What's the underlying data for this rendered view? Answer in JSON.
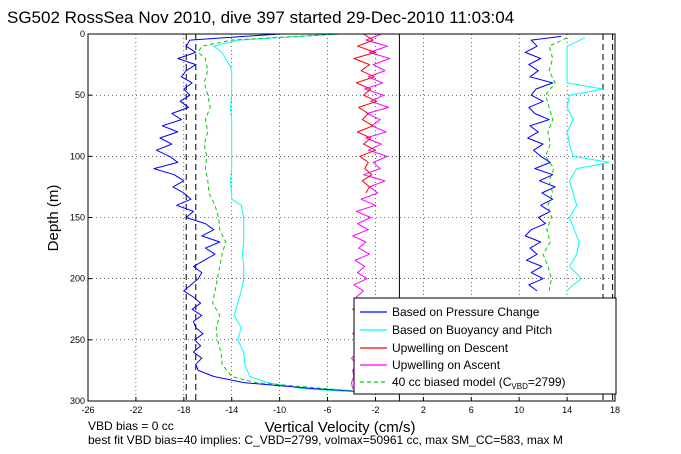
{
  "chart_data": {
    "type": "line",
    "title": "SG502 RossSea Nov 2010, dive 397 started 29-Dec-2010 11:03:04",
    "xlabel": "Vertical Velocity (cm/s)",
    "ylabel": "Depth (m)",
    "xlim": [
      -26,
      18
    ],
    "ylim": [
      0,
      300
    ],
    "y_reversed": true,
    "grid": true,
    "legend_position": "bottom-right",
    "x_ticks": [
      -26,
      -22,
      -18,
      -14,
      -10,
      -6,
      -2,
      2,
      6,
      10,
      14,
      18
    ],
    "y_ticks": [
      0,
      50,
      100,
      150,
      200,
      250,
      300
    ],
    "vertical_lines": [
      {
        "x": -17.8,
        "style": "dashed",
        "color": "#000000"
      },
      {
        "x": -17.0,
        "style": "dashed",
        "color": "#000000"
      },
      {
        "x": 0.0,
        "style": "solid",
        "color": "#000000"
      },
      {
        "x": 17.0,
        "style": "dashed",
        "color": "#000000"
      },
      {
        "x": 17.8,
        "style": "dashed",
        "color": "#000000"
      }
    ],
    "series": [
      {
        "name": "Based on Pressure Change",
        "color": "#0000ff",
        "style": "solid",
        "descent": {
          "depth": [
            0,
            5,
            10,
            15,
            20,
            25,
            30,
            35,
            40,
            45,
            50,
            55,
            60,
            65,
            70,
            75,
            80,
            85,
            90,
            95,
            100,
            105,
            110,
            115,
            120,
            125,
            130,
            135,
            140,
            145,
            150,
            155,
            160,
            165,
            170,
            175,
            180,
            185,
            190,
            195,
            200,
            205,
            210,
            215,
            220,
            225,
            230,
            235,
            240,
            245,
            250,
            255,
            260,
            265,
            270,
            275,
            280,
            285,
            290,
            293
          ],
          "velocity": [
            -10,
            -17.5,
            -17.8,
            -17.0,
            -18.5,
            -17.0,
            -17.8,
            -18.2,
            -17.3,
            -18.0,
            -17.5,
            -18.3,
            -17.6,
            -19.0,
            -18.2,
            -19.8,
            -18.5,
            -20.0,
            -19.0,
            -20.3,
            -19.2,
            -18.5,
            -20.5,
            -18.8,
            -18.0,
            -18.9,
            -18.0,
            -17.4,
            -18.6,
            -17.2,
            -17.8,
            -16.2,
            -15.5,
            -16.5,
            -15.0,
            -16.2,
            -15.4,
            -16.3,
            -17.2,
            -16.5,
            -16.8,
            -17.4,
            -18.0,
            -17.2,
            -16.6,
            -17.3,
            -16.5,
            -17.2,
            -17.0,
            -16.4,
            -17.1,
            -16.6,
            -17.2,
            -16.5,
            -17.0,
            -16.8,
            -15.5,
            -13,
            -7,
            -2
          ]
        },
        "ascent": {
          "depth": [
            2,
            5,
            10,
            15,
            20,
            25,
            30,
            35,
            40,
            45,
            50,
            55,
            60,
            65,
            70,
            75,
            80,
            85,
            90,
            95,
            100,
            105,
            110,
            115,
            120,
            125,
            130,
            135,
            140,
            145,
            150,
            155,
            160,
            165,
            170,
            175,
            180,
            185,
            190,
            195,
            200,
            205,
            210
          ],
          "velocity": [
            13.5,
            11.0,
            11.5,
            10.5,
            11.8,
            10.8,
            11.6,
            10.9,
            12.8,
            11.4,
            11.0,
            12.0,
            10.8,
            11.3,
            12.5,
            10.9,
            11.6,
            10.7,
            12.0,
            11.2,
            11.8,
            12.6,
            11.3,
            12.8,
            11.7,
            13.0,
            11.9,
            12.8,
            11.8,
            12.6,
            11.6,
            12.2,
            11.0,
            10.5,
            11.8,
            10.9,
            11.5,
            10.6,
            11.9,
            11.0,
            12.0,
            10.8,
            11.5
          ]
        }
      },
      {
        "name": "Based on Buoyancy and Pitch",
        "color": "#00ffff",
        "style": "solid",
        "descent": {
          "depth": [
            0,
            5,
            10,
            15,
            20,
            25,
            30,
            40,
            50,
            60,
            70,
            80,
            90,
            100,
            110,
            120,
            130,
            135,
            140,
            150,
            160,
            170,
            180,
            190,
            200,
            210,
            220,
            230,
            240,
            250,
            260,
            270,
            280,
            285,
            290,
            293
          ],
          "velocity": [
            -5,
            -13.5,
            -15.5,
            -14.8,
            -14.5,
            -14.2,
            -14.0,
            -14.0,
            -14.0,
            -14.1,
            -14.0,
            -14.0,
            -14.0,
            -14.0,
            -14.0,
            -14.1,
            -14.0,
            -14.0,
            -13.2,
            -13.0,
            -13.0,
            -13.0,
            -13.1,
            -13.0,
            -13.0,
            -13.2,
            -13.5,
            -13.8,
            -13.2,
            -13.5,
            -13.0,
            -12.9,
            -12.5,
            -11.0,
            -8.0,
            -3.0
          ]
        },
        "ascent": {
          "depth": [
            3,
            10,
            20,
            30,
            40,
            45,
            50,
            60,
            70,
            80,
            90,
            100,
            105,
            110,
            120,
            130,
            140,
            150,
            160,
            170,
            180,
            190,
            200,
            205,
            210
          ],
          "velocity": [
            15.5,
            14.0,
            14.0,
            14.0,
            14.0,
            17.0,
            14.2,
            14.0,
            14.5,
            14.0,
            14.2,
            14.5,
            17.5,
            14.8,
            14.2,
            14.5,
            14.8,
            14.2,
            14.6,
            15.0,
            14.8,
            14.2,
            15.2,
            14.5,
            14.0
          ]
        }
      },
      {
        "name": "Upwelling on Descent",
        "color": "#ff0000",
        "style": "solid",
        "depth": [
          0,
          5,
          10,
          15,
          20,
          25,
          30,
          35,
          40,
          45,
          50,
          55,
          60,
          65,
          70,
          75,
          80,
          85,
          90,
          95,
          100,
          105,
          110,
          115,
          120,
          125,
          130
        ],
        "velocity": [
          -3.0,
          -2.2,
          -3.5,
          -2.0,
          -3.8,
          -2.5,
          -3.2,
          -2.1,
          -3.6,
          -2.4,
          -3.0,
          -1.9,
          -3.4,
          -2.6,
          -3.1,
          -2.2,
          -3.5,
          -2.4,
          -3.0,
          -2.0,
          -3.3,
          -2.6,
          -2.9,
          -2.3,
          -3.1,
          -2.5,
          -2.8
        ]
      },
      {
        "name": "Upwelling on Ascent",
        "color": "#ff00ff",
        "style": "solid",
        "depth": [
          0,
          5,
          10,
          15,
          20,
          25,
          30,
          35,
          40,
          45,
          50,
          55,
          60,
          65,
          70,
          75,
          80,
          85,
          90,
          95,
          100,
          105,
          110,
          115,
          120,
          125,
          130,
          135,
          140,
          145,
          150,
          155,
          160,
          165,
          170,
          175,
          180,
          185,
          190,
          195,
          200,
          205,
          210,
          215,
          220,
          225,
          230,
          235,
          240,
          245,
          250,
          255,
          260,
          265,
          270,
          275,
          280,
          285,
          290
        ],
        "velocity": [
          -1.5,
          -2.8,
          -1.0,
          -2.5,
          -0.8,
          -2.2,
          -1.2,
          -2.6,
          -1.4,
          -2.9,
          -1.3,
          -2.4,
          -0.9,
          -2.7,
          -1.6,
          -2.3,
          -1.1,
          -2.8,
          -1.5,
          -2.6,
          -1.0,
          -2.2,
          -1.6,
          -3.0,
          -1.2,
          -2.5,
          -1.8,
          -3.2,
          -2.0,
          -3.6,
          -2.4,
          -3.5,
          -2.6,
          -3.9,
          -2.8,
          -3.4,
          -2.5,
          -3.7,
          -2.9,
          -3.5,
          -2.7,
          -3.8,
          -3.0,
          -3.6,
          -3.3,
          -3.9,
          -3.1,
          -3.7,
          -3.4,
          -3.9,
          -3.2,
          -3.8,
          -3.5,
          -4.0,
          -3.6,
          -3.9,
          -3.8,
          -4.0,
          -3.9
        ]
      },
      {
        "name": "40 cc biased model (C",
        "name_sub": "VBD",
        "name_suffix": "=2799)",
        "color": "#00cc00",
        "style": "dashed",
        "descent": {
          "depth": [
            0,
            5,
            10,
            15,
            20,
            30,
            40,
            50,
            60,
            70,
            80,
            90,
            100,
            110,
            120,
            130,
            140,
            150,
            160,
            170,
            180,
            190,
            200,
            210,
            220,
            230,
            240,
            250,
            260,
            270,
            280,
            285,
            290,
            293
          ],
          "velocity": [
            -5,
            -14.0,
            -16.5,
            -16.8,
            -16.2,
            -16.0,
            -16.3,
            -16.0,
            -15.8,
            -16.2,
            -16.0,
            -16.3,
            -16.1,
            -16.2,
            -16.0,
            -15.9,
            -15.4,
            -15.1,
            -15.0,
            -14.5,
            -14.8,
            -15.0,
            -15.2,
            -15.4,
            -15.6,
            -15.0,
            -15.3,
            -15.2,
            -14.9,
            -14.8,
            -14.0,
            -12.0,
            -6.0,
            -2.0
          ]
        },
        "ascent": {
          "depth": [
            3,
            10,
            20,
            30,
            40,
            50,
            60,
            70,
            80,
            90,
            100,
            110,
            120,
            130,
            140,
            150,
            160,
            170,
            180,
            190,
            200,
            210
          ],
          "velocity": [
            14.0,
            12.5,
            12.8,
            12.5,
            13.0,
            12.2,
            12.5,
            12.8,
            12.4,
            12.6,
            12.2,
            12.9,
            12.5,
            12.8,
            12.4,
            12.7,
            12.3,
            12.6,
            12.0,
            12.4,
            12.7,
            12.5
          ]
        }
      }
    ]
  },
  "notes": {
    "line1": "VBD bias = 0 cc",
    "line2": "best fit VBD bias=40 implies: C_VBD=2799, volmax=50961 cc, max SM_CC=583, max M"
  },
  "colors": {
    "pressure": "#0000ff",
    "buoyancy": "#00ffff",
    "descent": "#ff0000",
    "ascent": "#ff00ff",
    "model": "#00cc00",
    "axes": "#000000",
    "background": "#ffffff"
  }
}
